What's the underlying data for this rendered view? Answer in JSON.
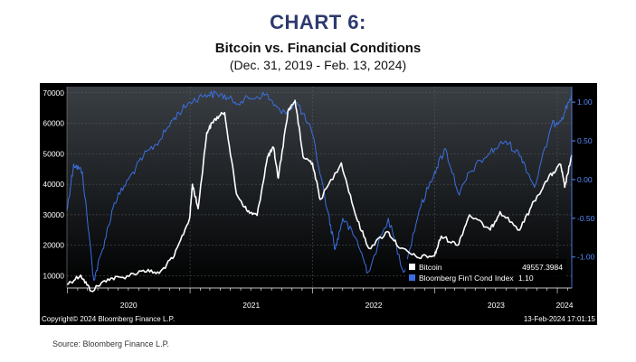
{
  "header": {
    "chart_label": "CHART 6:",
    "title": "Bitcoin vs. Financial Conditions",
    "subtitle": "(Dec. 31, 2019 - Feb. 13, 2024)"
  },
  "footer": {
    "copyright": "Copyright© 2024 Bloomberg Finance L.P.",
    "timestamp": "13-Feb-2024 17:01:15",
    "source": "Source: Bloomberg Finance L.P."
  },
  "colors": {
    "background_top": "#3a3f44",
    "background_bottom": "#000000",
    "bitcoin": "#ffffff",
    "fci": "#3b6fe0",
    "axis_text_right": "#5a8cff",
    "title": "#2e3a6e"
  },
  "chart_data": {
    "type": "line",
    "x_range": [
      "2019-12-31",
      "2024-02-13"
    ],
    "x_tick_labels": [
      "2020",
      "2021",
      "2022",
      "2023",
      "2024"
    ],
    "y_left": {
      "ticks": [
        "70000",
        "60000",
        "50000",
        "40000",
        "30000",
        "20000",
        "10000"
      ],
      "ylim": [
        6000,
        72000
      ]
    },
    "y_right": {
      "ticks": [
        "1.00",
        "0.50",
        "0.00",
        "-0.50",
        "-1.00"
      ],
      "ylim": [
        -1.4,
        1.2
      ]
    },
    "grid": true,
    "legend_position": "bottom-right",
    "series": [
      {
        "name": "Bitcoin",
        "last_value": "49557.3984",
        "axis": "left",
        "x": [
          "2019-12-31",
          "2020-02-10",
          "2020-03-12",
          "2020-05-01",
          "2020-06-15",
          "2020-08-15",
          "2020-10-01",
          "2020-11-15",
          "2020-12-31",
          "2021-01-08",
          "2021-01-25",
          "2021-02-20",
          "2021-03-13",
          "2021-04-14",
          "2021-05-19",
          "2021-06-22",
          "2021-07-20",
          "2021-08-20",
          "2021-09-07",
          "2021-09-21",
          "2021-10-20",
          "2021-11-10",
          "2021-12-04",
          "2022-01-01",
          "2022-01-24",
          "2022-03-28",
          "2022-05-12",
          "2022-06-18",
          "2022-08-13",
          "2022-09-20",
          "2022-11-09",
          "2022-12-31",
          "2023-01-20",
          "2023-03-10",
          "2023-04-14",
          "2023-06-15",
          "2023-07-14",
          "2023-09-11",
          "2023-10-24",
          "2023-12-05",
          "2024-01-11",
          "2024-01-23",
          "2024-02-13"
        ],
        "values": [
          7200,
          10200,
          5000,
          9000,
          9500,
          11800,
          10800,
          16500,
          29000,
          40000,
          32000,
          57000,
          61000,
          63500,
          37000,
          31000,
          29800,
          49000,
          52000,
          42000,
          64000,
          67500,
          49000,
          47000,
          35000,
          47000,
          29000,
          19000,
          24500,
          19000,
          16000,
          16600,
          23000,
          20000,
          30000,
          25000,
          31000,
          25000,
          34500,
          42000,
          46500,
          39000,
          49557
        ]
      },
      {
        "name": "Bloomberg Fin'l Cond Index",
        "last_value": "1.10",
        "axis": "right",
        "x": [
          "2019-12-31",
          "2020-01-20",
          "2020-02-15",
          "2020-03-20",
          "2020-04-15",
          "2020-05-20",
          "2020-07-01",
          "2020-08-15",
          "2020-10-01",
          "2020-11-15",
          "2020-12-31",
          "2021-02-15",
          "2021-04-01",
          "2021-05-15",
          "2021-07-01",
          "2021-08-15",
          "2021-10-01",
          "2021-11-15",
          "2021-12-31",
          "2022-02-15",
          "2022-03-10",
          "2022-04-01",
          "2022-05-15",
          "2022-06-15",
          "2022-08-15",
          "2022-09-30",
          "2022-11-15",
          "2022-12-31",
          "2023-02-01",
          "2023-03-15",
          "2023-04-15",
          "2023-06-15",
          "2023-07-31",
          "2023-09-15",
          "2023-10-25",
          "2023-12-15",
          "2024-01-15",
          "2024-02-13"
        ],
        "values": [
          -0.4,
          0.2,
          0.1,
          -1.3,
          -0.9,
          -0.3,
          0.0,
          0.3,
          0.5,
          0.8,
          1.0,
          1.1,
          1.1,
          1.0,
          1.05,
          1.1,
          0.85,
          1.0,
          0.6,
          -0.4,
          -0.9,
          -0.5,
          -0.8,
          -1.2,
          -0.5,
          -1.2,
          -0.4,
          0.1,
          0.4,
          -0.2,
          0.1,
          0.35,
          0.5,
          0.3,
          -0.1,
          0.7,
          0.8,
          1.1
        ]
      }
    ]
  }
}
